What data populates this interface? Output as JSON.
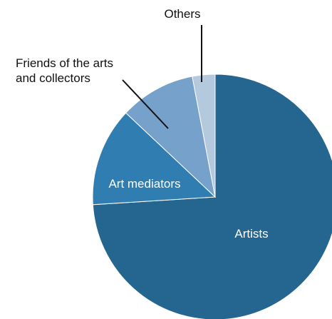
{
  "chart_data": {
    "type": "pie",
    "title": "",
    "start_angle_deg": 0,
    "direction": "clockwise",
    "legend": "none",
    "slices": [
      {
        "label": "Artists",
        "value": 74,
        "color": "#246690"
      },
      {
        "label": "Art mediators",
        "value": 13,
        "color": "#2f7db1"
      },
      {
        "label": "Friends of the arts and collectors",
        "label_lines": [
          "Friends of the arts",
          "and collectors"
        ],
        "value": 10,
        "color": "#76a1ca"
      },
      {
        "label": "Others",
        "value": 3,
        "color": "#b4c8de"
      }
    ]
  }
}
